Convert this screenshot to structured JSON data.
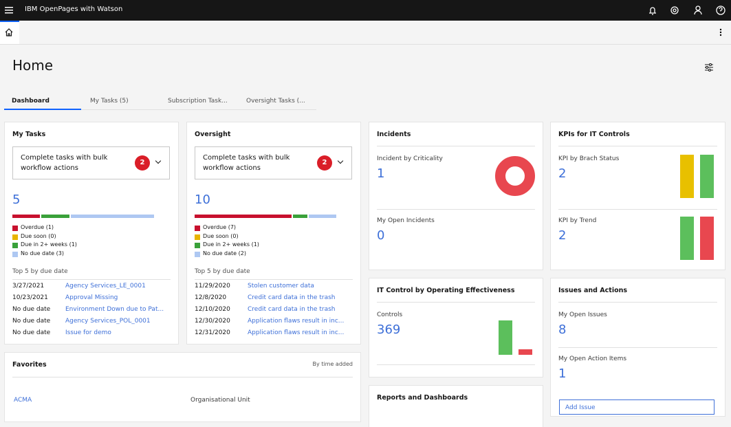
{
  "header": {
    "product": "IBM OpenPages with Watson"
  },
  "page": {
    "title": "Home",
    "tabs": [
      "Dashboard",
      "My Tasks (5)",
      "Subscription Task...",
      "Oversight Tasks (..."
    ]
  },
  "my_tasks": {
    "title": "My Tasks",
    "bulk": {
      "text": "Complete tasks with bulk workflow actions",
      "badge": 2
    },
    "total": 5,
    "legend": [
      {
        "label": "Overdue (1)",
        "value": 1,
        "color": "#c8102e"
      },
      {
        "label": "Due soon (0)",
        "value": 0,
        "color": "#e8b400"
      },
      {
        "label": "Due in 2+ weeks (1)",
        "value": 1,
        "color": "#3aa13a"
      },
      {
        "label": "No due date (3)",
        "value": 3,
        "color": "#aec8f2"
      }
    ],
    "top_label": "Top 5 by due date",
    "rows": [
      [
        "3/27/2021",
        "Agency Services_LE_0001"
      ],
      [
        "10/23/2021",
        "Approval Missing"
      ],
      [
        "No due date",
        "Environment Down due to Pat..."
      ],
      [
        "No due date",
        "Agency Services_POL_0001"
      ],
      [
        "No due date",
        "Issue for demo"
      ]
    ]
  },
  "oversight": {
    "title": "Oversight",
    "bulk": {
      "text": "Complete tasks with bulk workflow actions",
      "badge": 2
    },
    "total": 10,
    "legend": [
      {
        "label": "Overdue (7)",
        "value": 7,
        "color": "#c8102e"
      },
      {
        "label": "Due soon (0)",
        "value": 0,
        "color": "#e8b400"
      },
      {
        "label": "Due in 2+ weeks (1)",
        "value": 1,
        "color": "#3aa13a"
      },
      {
        "label": "No due date (2)",
        "value": 2,
        "color": "#aec8f2"
      }
    ],
    "top_label": "Top 5 by due date",
    "rows": [
      [
        "11/29/2020",
        "Stolen customer data"
      ],
      [
        "12/8/2020",
        "Credit card data in the trash"
      ],
      [
        "12/10/2020",
        "Credit card data in the trash"
      ],
      [
        "12/30/2020",
        "Application flaws result in inc..."
      ],
      [
        "12/31/2020",
        "Application flaws result in inc..."
      ]
    ]
  },
  "incidents": {
    "title": "Incidents",
    "metrics": [
      {
        "label": "Incident by Criticality",
        "value": 1,
        "chart": {
          "type": "donut",
          "values": [
            1
          ],
          "colors": [
            "#e8474f"
          ]
        }
      },
      {
        "label": "My Open Incidents",
        "value": 0
      }
    ]
  },
  "kpis": {
    "title": "KPIs for IT Controls",
    "metrics": [
      {
        "label": "KPI by Brach Status",
        "value": 2,
        "chart": {
          "type": "bar",
          "values": [
            1,
            1
          ],
          "colors": [
            "#e8c000",
            "#5cbf5c"
          ]
        }
      },
      {
        "label": "KPI by Trend",
        "value": 2,
        "chart": {
          "type": "bar",
          "values": [
            1,
            1
          ],
          "colors": [
            "#5cbf5c",
            "#e8474f"
          ]
        }
      }
    ]
  },
  "it_control": {
    "title": "IT Control by Operating Effectiveness",
    "metrics": [
      {
        "label": "Controls",
        "value": 369,
        "chart": {
          "type": "bar",
          "values": [
            318,
            51
          ],
          "colors": [
            "#5cbf5c",
            "#e8474f"
          ]
        }
      }
    ]
  },
  "issues": {
    "title": "Issues and Actions",
    "metrics": [
      {
        "label": "My Open Issues",
        "value": 8
      },
      {
        "label": "My Open Action Items",
        "value": 1
      }
    ],
    "button": "Add Issue"
  },
  "favorites": {
    "title": "Favorites",
    "sort": "By time added",
    "rows": [
      [
        "ACMA",
        "Organisational Unit"
      ]
    ]
  },
  "reports": {
    "title": "Reports and Dashboards"
  }
}
